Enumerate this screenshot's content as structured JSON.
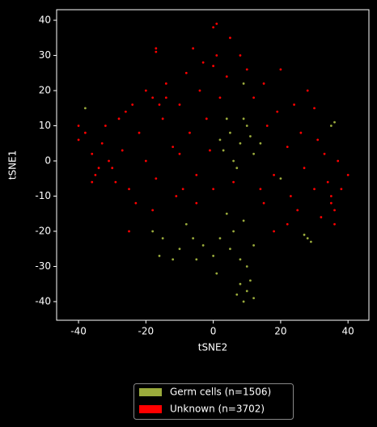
{
  "chart_data": {
    "type": "scatter",
    "xlabel": "tSNE2",
    "ylabel": "tSNE1",
    "xlim": [
      -46.5,
      46.2
    ],
    "ylim": [
      -45.3,
      43
    ],
    "xticks": [
      -40,
      -20,
      0,
      20,
      40
    ],
    "yticks": [
      -40,
      -30,
      -20,
      -10,
      0,
      10,
      20,
      30,
      40
    ],
    "legend": "bottom-outside",
    "series": [
      {
        "name": "Germ cells (n=1506)",
        "color": "#9aab3c",
        "x": [
          5,
          8,
          10,
          3,
          12,
          6,
          9,
          4,
          7,
          11,
          2,
          14,
          10,
          8,
          12,
          9,
          11,
          7,
          5,
          8,
          2,
          10,
          0,
          6,
          4,
          9,
          -3,
          -5,
          1,
          12,
          -10,
          -15,
          -12,
          -18,
          -8,
          -16,
          -6,
          28,
          27,
          29,
          36,
          35,
          9,
          -38,
          20
        ],
        "y": [
          8,
          5,
          10,
          3,
          2,
          0,
          12,
          12,
          -2,
          7,
          6,
          5,
          -37,
          -35,
          -39,
          -40,
          -34,
          -38,
          -25,
          -28,
          -22,
          -30,
          -27,
          -20,
          -15,
          -17,
          -24,
          -28,
          -32,
          -24,
          -25,
          -22,
          -28,
          -20,
          -18,
          -27,
          -22,
          -22,
          -21,
          -23,
          11,
          10,
          22,
          15,
          -5
        ]
      },
      {
        "name": "Unknown (n=3702)",
        "color": "#ff0000",
        "x": [
          -40,
          -38,
          -36,
          -35,
          -33,
          -32,
          -30,
          -28,
          -27,
          -25,
          -24,
          -22,
          -20,
          -18,
          -17,
          -15,
          -14,
          -12,
          -11,
          -10,
          -8,
          -7,
          -5,
          -4,
          -3,
          -2,
          0,
          1,
          2,
          4,
          5,
          6,
          8,
          10,
          12,
          14,
          15,
          16,
          18,
          19,
          20,
          22,
          23,
          24,
          25,
          26,
          27,
          28,
          30,
          31,
          32,
          33,
          34,
          35,
          36,
          37,
          38,
          40,
          35,
          36,
          -34,
          -36,
          -31,
          -29,
          -26,
          -20,
          -16,
          -14,
          -23,
          -5,
          -25,
          -18,
          18,
          22,
          15,
          -6,
          0,
          1,
          -17,
          -17,
          0,
          -9,
          30,
          -40,
          -1,
          -10
        ],
        "y": [
          6,
          8,
          2,
          -4,
          5,
          10,
          -2,
          12,
          3,
          -8,
          16,
          8,
          0,
          18,
          -5,
          12,
          22,
          4,
          -10,
          16,
          25,
          8,
          -4,
          20,
          28,
          12,
          -8,
          30,
          18,
          24,
          35,
          -6,
          30,
          26,
          18,
          -8,
          22,
          10,
          -4,
          14,
          26,
          4,
          -10,
          16,
          -14,
          8,
          -2,
          20,
          -8,
          6,
          -16,
          2,
          -6,
          -12,
          -18,
          0,
          -8,
          -4,
          -10,
          -14,
          -2,
          -6,
          0,
          -6,
          14,
          20,
          16,
          18,
          -12,
          -12,
          -20,
          -14,
          -20,
          -18,
          -12,
          32,
          38,
          39,
          32,
          31,
          27,
          -8,
          15,
          10,
          3,
          2
        ]
      }
    ]
  }
}
